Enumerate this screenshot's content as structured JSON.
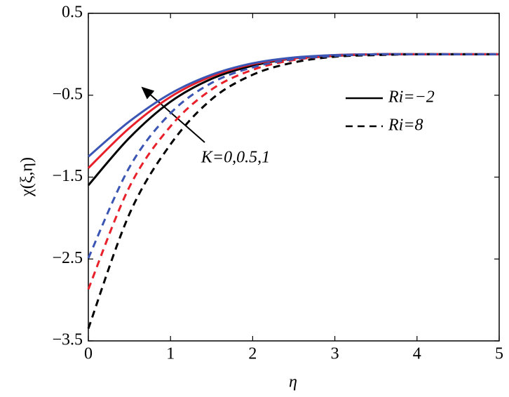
{
  "chart_data": {
    "type": "line",
    "x_label": "η",
    "y_label": "χ(ξ,η)",
    "x": [
      0,
      0.5,
      1,
      1.5,
      2,
      2.5,
      3,
      3.5,
      4,
      4.5,
      5
    ],
    "series": [
      {
        "color": "#000000",
        "dash": "solid",
        "values": [
          -1.6,
          -1.02,
          -0.58,
          -0.3,
          -0.14,
          -0.05,
          -0.02,
          0,
          0,
          0,
          0
        ]
      },
      {
        "color": "#e8202a",
        "dash": "solid",
        "values": [
          -1.39,
          -0.9,
          -0.52,
          -0.27,
          -0.12,
          -0.05,
          -0.01,
          0,
          0,
          0,
          0
        ]
      },
      {
        "color": "#3a55b4",
        "dash": "solid",
        "values": [
          -1.25,
          -0.82,
          -0.48,
          -0.25,
          -0.11,
          -0.04,
          -0.01,
          0,
          0,
          0,
          0
        ]
      },
      {
        "color": "#000000",
        "dash": "dashed",
        "values": [
          -3.35,
          -1.95,
          -1.1,
          -0.55,
          -0.25,
          -0.1,
          -0.03,
          -0.01,
          0,
          0,
          0
        ]
      },
      {
        "color": "#e8202a",
        "dash": "dashed",
        "values": [
          -2.87,
          -1.62,
          -0.88,
          -0.43,
          -0.19,
          -0.07,
          -0.02,
          0,
          0,
          0,
          0
        ]
      },
      {
        "color": "#3a55b4",
        "dash": "dashed",
        "values": [
          -2.49,
          -1.38,
          -0.72,
          -0.35,
          -0.16,
          -0.06,
          -0.02,
          0,
          0,
          0,
          0
        ]
      }
    ],
    "legend": [
      {
        "label": "Ri=−2",
        "dash": "solid"
      },
      {
        "label": "Ri=8",
        "dash": "dashed"
      }
    ],
    "annotation": "K=0,0.5,1",
    "xlim": [
      0,
      5
    ],
    "xticks": [
      0,
      1,
      2,
      3,
      4,
      5
    ],
    "ylim": [
      -3.5,
      0.5
    ],
    "yticks": [
      {
        "value": -3.5,
        "label": "−3.5"
      },
      {
        "value": -2.5,
        "label": "−2.5"
      },
      {
        "value": -1.5,
        "label": "−1.5"
      },
      {
        "value": -0.5,
        "label": "−0.5"
      },
      0.5
    ]
  }
}
